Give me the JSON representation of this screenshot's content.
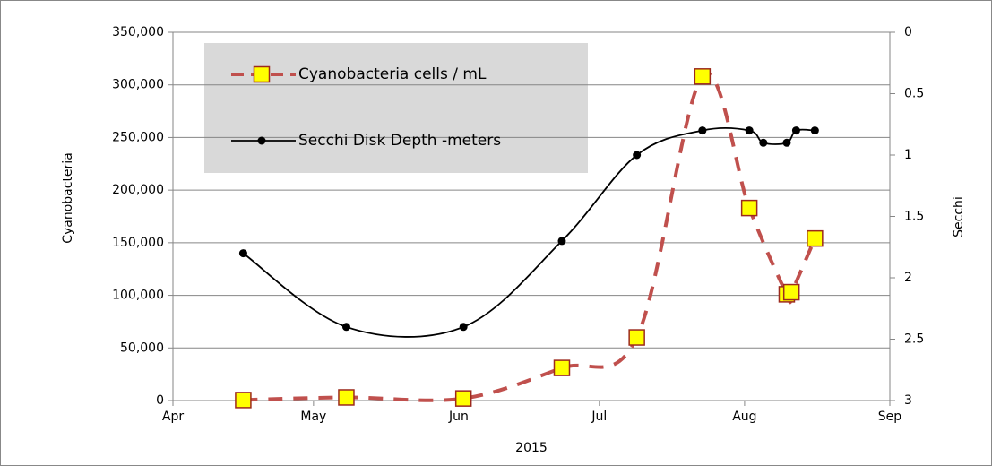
{
  "chart_data": {
    "type": "line",
    "xlabel": "2015",
    "ylabel": "Cyanobacteria",
    "y2label": "Secchi",
    "xlim": [
      0,
      153
    ],
    "xticks": [
      {
        "value": 0,
        "label": "Apr"
      },
      {
        "value": 30,
        "label": "May"
      },
      {
        "value": 61,
        "label": "Jun"
      },
      {
        "value": 91,
        "label": "Jul"
      },
      {
        "value": 122,
        "label": "Aug"
      },
      {
        "value": 153,
        "label": "Sep"
      }
    ],
    "ylim": [
      0,
      350000
    ],
    "yticks": [
      0,
      {
        "value": 50000,
        "label": "50,000"
      },
      {
        "value": 100000,
        "label": "100,000"
      },
      {
        "value": 150000,
        "label": "150,000"
      },
      {
        "value": 200000,
        "label": "200,000"
      },
      {
        "value": 250000,
        "label": "250,000"
      },
      {
        "value": 300000,
        "label": "300,000"
      },
      {
        "value": 350000,
        "label": "350,000"
      }
    ],
    "y2lim": [
      0,
      3
    ],
    "y2_inverted": true,
    "y2ticks": [
      0,
      0.5,
      1,
      1.5,
      2,
      2.5,
      3
    ],
    "grid": true,
    "legend": "upper left",
    "series": [
      {
        "name": "Cyanobacteria cells / mL",
        "color": "#c0504d",
        "marker_color": "#ffff00",
        "dashed": true,
        "x": [
          15,
          37,
          62,
          83,
          99,
          113,
          123,
          131,
          132,
          137
        ],
        "values": [
          500,
          3000,
          2000,
          31000,
          60000,
          308000,
          183000,
          101000,
          103000,
          154000
        ]
      },
      {
        "name": "Secchi Disk Depth -meters",
        "color": "#000000",
        "axis": "y2",
        "dashed": false,
        "x": [
          15,
          37,
          62,
          83,
          99,
          113,
          123,
          126,
          131,
          133,
          137
        ],
        "values": [
          1.8,
          2.4,
          2.4,
          1.7,
          1.0,
          0.8,
          0.8,
          0.9,
          0.9,
          0.8,
          0.8
        ]
      }
    ]
  }
}
